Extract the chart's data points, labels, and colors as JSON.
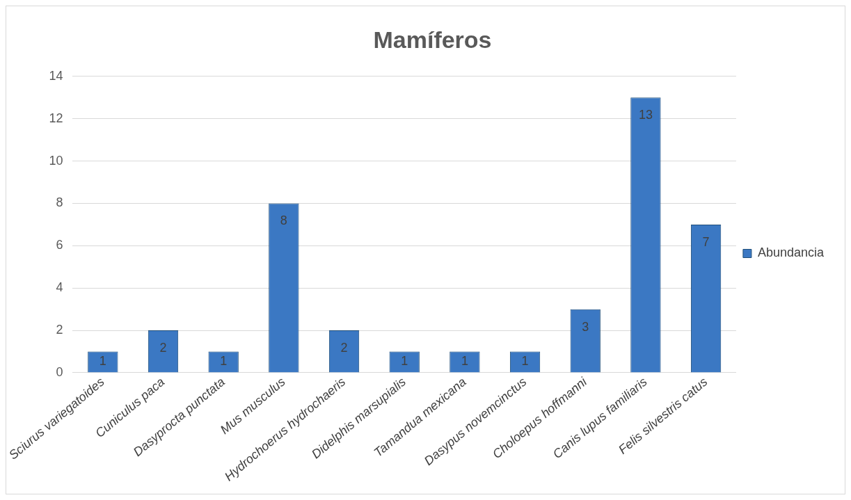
{
  "chart_data": {
    "type": "bar",
    "title": "Mamíferos",
    "categories": [
      "Sciurus variegatoides",
      "Cuniculus paca",
      "Dasyprocta punctata",
      "Mus musculus",
      "Hydrochoerus hydrochaeris",
      "Didelphis marsupialis",
      "Tamandua mexicana",
      "Dasypus novemcinctus",
      "Choloepus hoffmanni",
      "Canis lupus familiaris",
      "Felis silvestris catus"
    ],
    "series": [
      {
        "name": "Abundancia",
        "color": "#3b78c3",
        "values": [
          1,
          2,
          1,
          8,
          2,
          1,
          1,
          1,
          3,
          13,
          7
        ]
      }
    ],
    "ylim": [
      0,
      14
    ],
    "yticks": [
      0,
      2,
      4,
      6,
      8,
      10,
      12,
      14
    ],
    "grid": "y",
    "legend": "right",
    "data_labels": true
  }
}
